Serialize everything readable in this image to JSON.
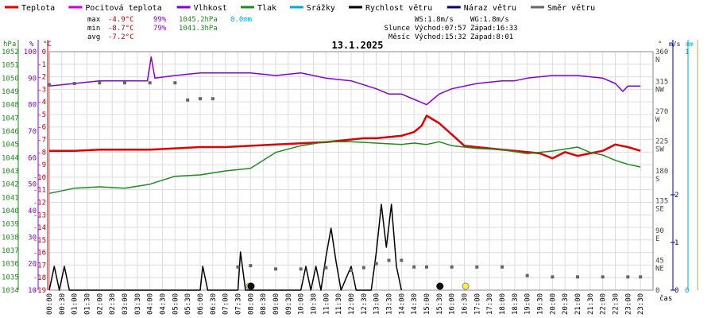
{
  "chart_data": {
    "type": "line",
    "title": "13.1.2025",
    "legend": [
      {
        "label": "Teplota",
        "color": "#e00000"
      },
      {
        "label": "Pocitová teplota",
        "color": "#cc00cc"
      },
      {
        "label": "Vlhkost",
        "color": "#8800cc"
      },
      {
        "label": "Tlak",
        "color": "#228822"
      },
      {
        "label": "Srážky",
        "color": "#00aadd"
      },
      {
        "label": "Rychlost větru",
        "color": "#000000"
      },
      {
        "label": "Náraz větru",
        "color": "#000080"
      },
      {
        "label": "Směr větru",
        "color": "#666666"
      }
    ],
    "stats": {
      "max_label": "max",
      "max_temp": "-4.9°C",
      "max_hum": "99%",
      "max_press": "1045.2hPa",
      "rain": "0.0mm",
      "min_label": "min",
      "min_temp": "-8.7°C",
      "min_hum": "79%",
      "min_press": "1041.3hPa",
      "avg_label": "avg",
      "avg_temp": "-7.2°C"
    },
    "info": {
      "ws": "WS:1.8m/s",
      "wg": "WG:1.8m/s",
      "sun_label": "Slunce",
      "sun_rise": "Východ:07:57",
      "sun_set": "Západ:16:33",
      "moon_label": "Měsíc",
      "moon_rise": "Východ:15:32",
      "moon_set": "Západ:8:01"
    },
    "axes": {
      "hpa_unit": "hPa",
      "hpa_ticks": [
        "1052",
        "1051",
        "1050",
        "1049",
        "1048",
        "1047",
        "1046",
        "1045",
        "1044",
        "1043",
        "1042",
        "1041",
        "1040",
        "1039",
        "1038",
        "1037",
        "1036",
        "1035",
        "1034"
      ],
      "pct_unit": "%",
      "pct_ticks": [
        "100",
        "90",
        "80",
        "70",
        "60",
        "50",
        "40",
        "30",
        "20",
        "10"
      ],
      "temp_unit": "°C",
      "temp_ticks": [
        "0",
        "-1",
        "-2",
        "-3",
        "-4",
        "-5",
        "-6",
        "-7",
        "-8",
        "-9",
        "-10",
        "-11",
        "-12",
        "-13",
        "-14",
        "-15",
        "-16",
        "-17",
        "-18",
        "-19"
      ],
      "dir_unit": "°",
      "dir_ticks": [
        {
          "v": "360",
          "c": "N"
        },
        {
          "v": "315",
          "c": "NW"
        },
        {
          "v": "270",
          "c": "W"
        },
        {
          "v": "225",
          "c": "SW"
        },
        {
          "v": "180",
          "c": "S"
        },
        {
          "v": "135",
          "c": "SE"
        },
        {
          "v": "90",
          "c": "E"
        },
        {
          "v": "45",
          "c": "NE"
        },
        {
          "v": "0",
          "c": ""
        }
      ],
      "ms_unit": "m/s",
      "mm_unit": "mm",
      "ms_ticks": [
        "2",
        "1",
        "0"
      ],
      "mm_ticks": [
        "1",
        "0"
      ],
      "x_label": "čas",
      "x_ticks": [
        "00:00",
        "00:30",
        "01:00",
        "01:30",
        "02:00",
        "02:30",
        "03:00",
        "03:30",
        "04:00",
        "04:30",
        "05:00",
        "05:30",
        "06:00",
        "06:30",
        "07:00",
        "07:30",
        "08:00",
        "08:30",
        "09:00",
        "09:30",
        "10:00",
        "10:30",
        "11:00",
        "11:30",
        "12:00",
        "12:30",
        "13:00",
        "13:30",
        "14:00",
        "14:30",
        "15:00",
        "15:30",
        "16:00",
        "16:30",
        "17:00",
        "17:30",
        "18:00",
        "18:30",
        "19:00",
        "19:30",
        "20:00",
        "20:30",
        "21:00",
        "21:30",
        "22:00",
        "22:30",
        "23:00",
        "23:30"
      ]
    },
    "series": [
      {
        "name": "Teplota",
        "axis": "temp",
        "color": "#e00000",
        "points": [
          [
            0,
            -7.9
          ],
          [
            1,
            -7.9
          ],
          [
            2,
            -7.8
          ],
          [
            3,
            -7.8
          ],
          [
            4,
            -7.8
          ],
          [
            5,
            -7.7
          ],
          [
            6,
            -7.6
          ],
          [
            7,
            -7.6
          ],
          [
            8,
            -7.5
          ],
          [
            9,
            -7.4
          ],
          [
            10,
            -7.3
          ],
          [
            11,
            -7.2
          ],
          [
            11.5,
            -7.1
          ],
          [
            12,
            -7.0
          ],
          [
            12.5,
            -6.9
          ],
          [
            13,
            -6.9
          ],
          [
            13.5,
            -6.8
          ],
          [
            14,
            -6.7
          ],
          [
            14.5,
            -6.4
          ],
          [
            14.8,
            -5.9
          ],
          [
            15,
            -5.1
          ],
          [
            15.5,
            -5.7
          ],
          [
            16,
            -6.6
          ],
          [
            16.5,
            -7.5
          ],
          [
            17,
            -7.6
          ],
          [
            17.5,
            -7.7
          ],
          [
            18,
            -7.8
          ],
          [
            19,
            -8.0
          ],
          [
            19.5,
            -8.1
          ],
          [
            20,
            -8.5
          ],
          [
            20.5,
            -8.0
          ],
          [
            21,
            -8.3
          ],
          [
            21.5,
            -8.1
          ],
          [
            22,
            -7.9
          ],
          [
            22.5,
            -7.4
          ],
          [
            23,
            -7.6
          ],
          [
            23.5,
            -7.9
          ]
        ]
      },
      {
        "name": "Vlhkost",
        "axis": "pct",
        "color": "#8800cc",
        "points": [
          [
            0,
            87
          ],
          [
            1,
            88
          ],
          [
            2,
            89
          ],
          [
            3,
            89
          ],
          [
            3.9,
            89
          ],
          [
            4.05,
            98
          ],
          [
            4.2,
            90
          ],
          [
            5,
            91
          ],
          [
            6,
            92
          ],
          [
            7,
            92
          ],
          [
            8,
            92
          ],
          [
            9,
            91
          ],
          [
            10,
            92
          ],
          [
            11,
            90
          ],
          [
            12,
            89
          ],
          [
            13,
            86
          ],
          [
            13.5,
            84
          ],
          [
            14,
            84
          ],
          [
            14.5,
            82
          ],
          [
            15,
            80
          ],
          [
            15.5,
            84
          ],
          [
            16,
            86
          ],
          [
            17,
            88
          ],
          [
            18,
            89
          ],
          [
            18.5,
            89
          ],
          [
            19,
            90
          ],
          [
            20,
            91
          ],
          [
            21,
            91
          ],
          [
            22,
            90
          ],
          [
            22.5,
            88
          ],
          [
            22.8,
            85
          ],
          [
            23,
            87
          ],
          [
            23.5,
            87
          ]
        ]
      },
      {
        "name": "Tlak",
        "axis": "hpa",
        "color": "#228822",
        "points": [
          [
            0,
            1041.3
          ],
          [
            1,
            1041.7
          ],
          [
            2,
            1041.8
          ],
          [
            3,
            1041.7
          ],
          [
            4,
            1042.0
          ],
          [
            5,
            1042.6
          ],
          [
            6,
            1042.7
          ],
          [
            7,
            1043.0
          ],
          [
            8,
            1043.2
          ],
          [
            8.5,
            1043.8
          ],
          [
            9,
            1044.4
          ],
          [
            10,
            1044.9
          ],
          [
            11,
            1045.2
          ],
          [
            12,
            1045.2
          ],
          [
            13,
            1045.1
          ],
          [
            14,
            1045.0
          ],
          [
            14.5,
            1045.1
          ],
          [
            15,
            1045.0
          ],
          [
            15.5,
            1045.2
          ],
          [
            16,
            1044.9
          ],
          [
            17,
            1044.7
          ],
          [
            18,
            1044.6
          ],
          [
            19,
            1044.3
          ],
          [
            20,
            1044.5
          ],
          [
            21,
            1044.8
          ],
          [
            21.5,
            1044.4
          ],
          [
            22,
            1044.2
          ],
          [
            22.5,
            1043.8
          ],
          [
            23,
            1043.5
          ],
          [
            23.5,
            1043.3
          ]
        ]
      },
      {
        "name": "Rychlost větru",
        "axis": "ms",
        "color": "#000000",
        "points": [
          [
            0,
            0
          ],
          [
            0.2,
            0.5
          ],
          [
            0.4,
            0
          ],
          [
            0.6,
            0.5
          ],
          [
            0.8,
            0
          ],
          [
            6,
            0
          ],
          [
            6.1,
            0.5
          ],
          [
            6.3,
            0
          ],
          [
            7.5,
            0
          ],
          [
            7.6,
            0.8
          ],
          [
            7.8,
            0
          ],
          [
            10,
            0
          ],
          [
            10.2,
            0.5
          ],
          [
            10.4,
            0
          ],
          [
            10.6,
            0.5
          ],
          [
            10.8,
            0
          ],
          [
            11,
            0.7
          ],
          [
            11.2,
            1.3
          ],
          [
            11.4,
            0.6
          ],
          [
            11.6,
            0
          ],
          [
            12,
            0.5
          ],
          [
            12.2,
            0
          ],
          [
            12.8,
            0
          ],
          [
            13,
            0.8
          ],
          [
            13.2,
            1.8
          ],
          [
            13.4,
            0.9
          ],
          [
            13.6,
            1.8
          ],
          [
            13.8,
            0.5
          ],
          [
            14,
            0
          ]
        ]
      },
      {
        "name": "Směr větru",
        "axis": "dir",
        "color": "#666666",
        "points": [
          [
            0,
            310
          ],
          [
            1,
            312
          ],
          [
            2,
            313
          ],
          [
            3,
            313
          ],
          [
            4,
            313
          ],
          [
            5,
            313
          ],
          [
            5.5,
            287
          ],
          [
            6,
            289
          ],
          [
            6.5,
            289
          ],
          [
            7.5,
            35
          ],
          [
            8,
            37
          ],
          [
            9,
            32
          ],
          [
            10,
            32
          ],
          [
            11,
            34
          ],
          [
            12,
            30
          ],
          [
            12.5,
            34
          ],
          [
            13,
            40
          ],
          [
            13.5,
            45
          ],
          [
            14,
            45
          ],
          [
            14.5,
            35
          ],
          [
            15,
            35
          ],
          [
            16,
            35
          ],
          [
            17,
            35
          ],
          [
            18,
            35
          ],
          [
            19,
            22
          ],
          [
            20,
            20
          ],
          [
            21,
            20
          ],
          [
            22,
            20
          ],
          [
            23,
            20
          ],
          [
            23.5,
            20
          ]
        ]
      }
    ],
    "markers": [
      {
        "kind": "sun-rise",
        "x": 7.95,
        "y": 0
      },
      {
        "kind": "moon-set",
        "x": 8.02,
        "y": 0
      },
      {
        "kind": "moon-rise",
        "x": 15.53,
        "y": 0
      },
      {
        "kind": "sun-set",
        "x": 16.55,
        "y": 0
      }
    ]
  }
}
